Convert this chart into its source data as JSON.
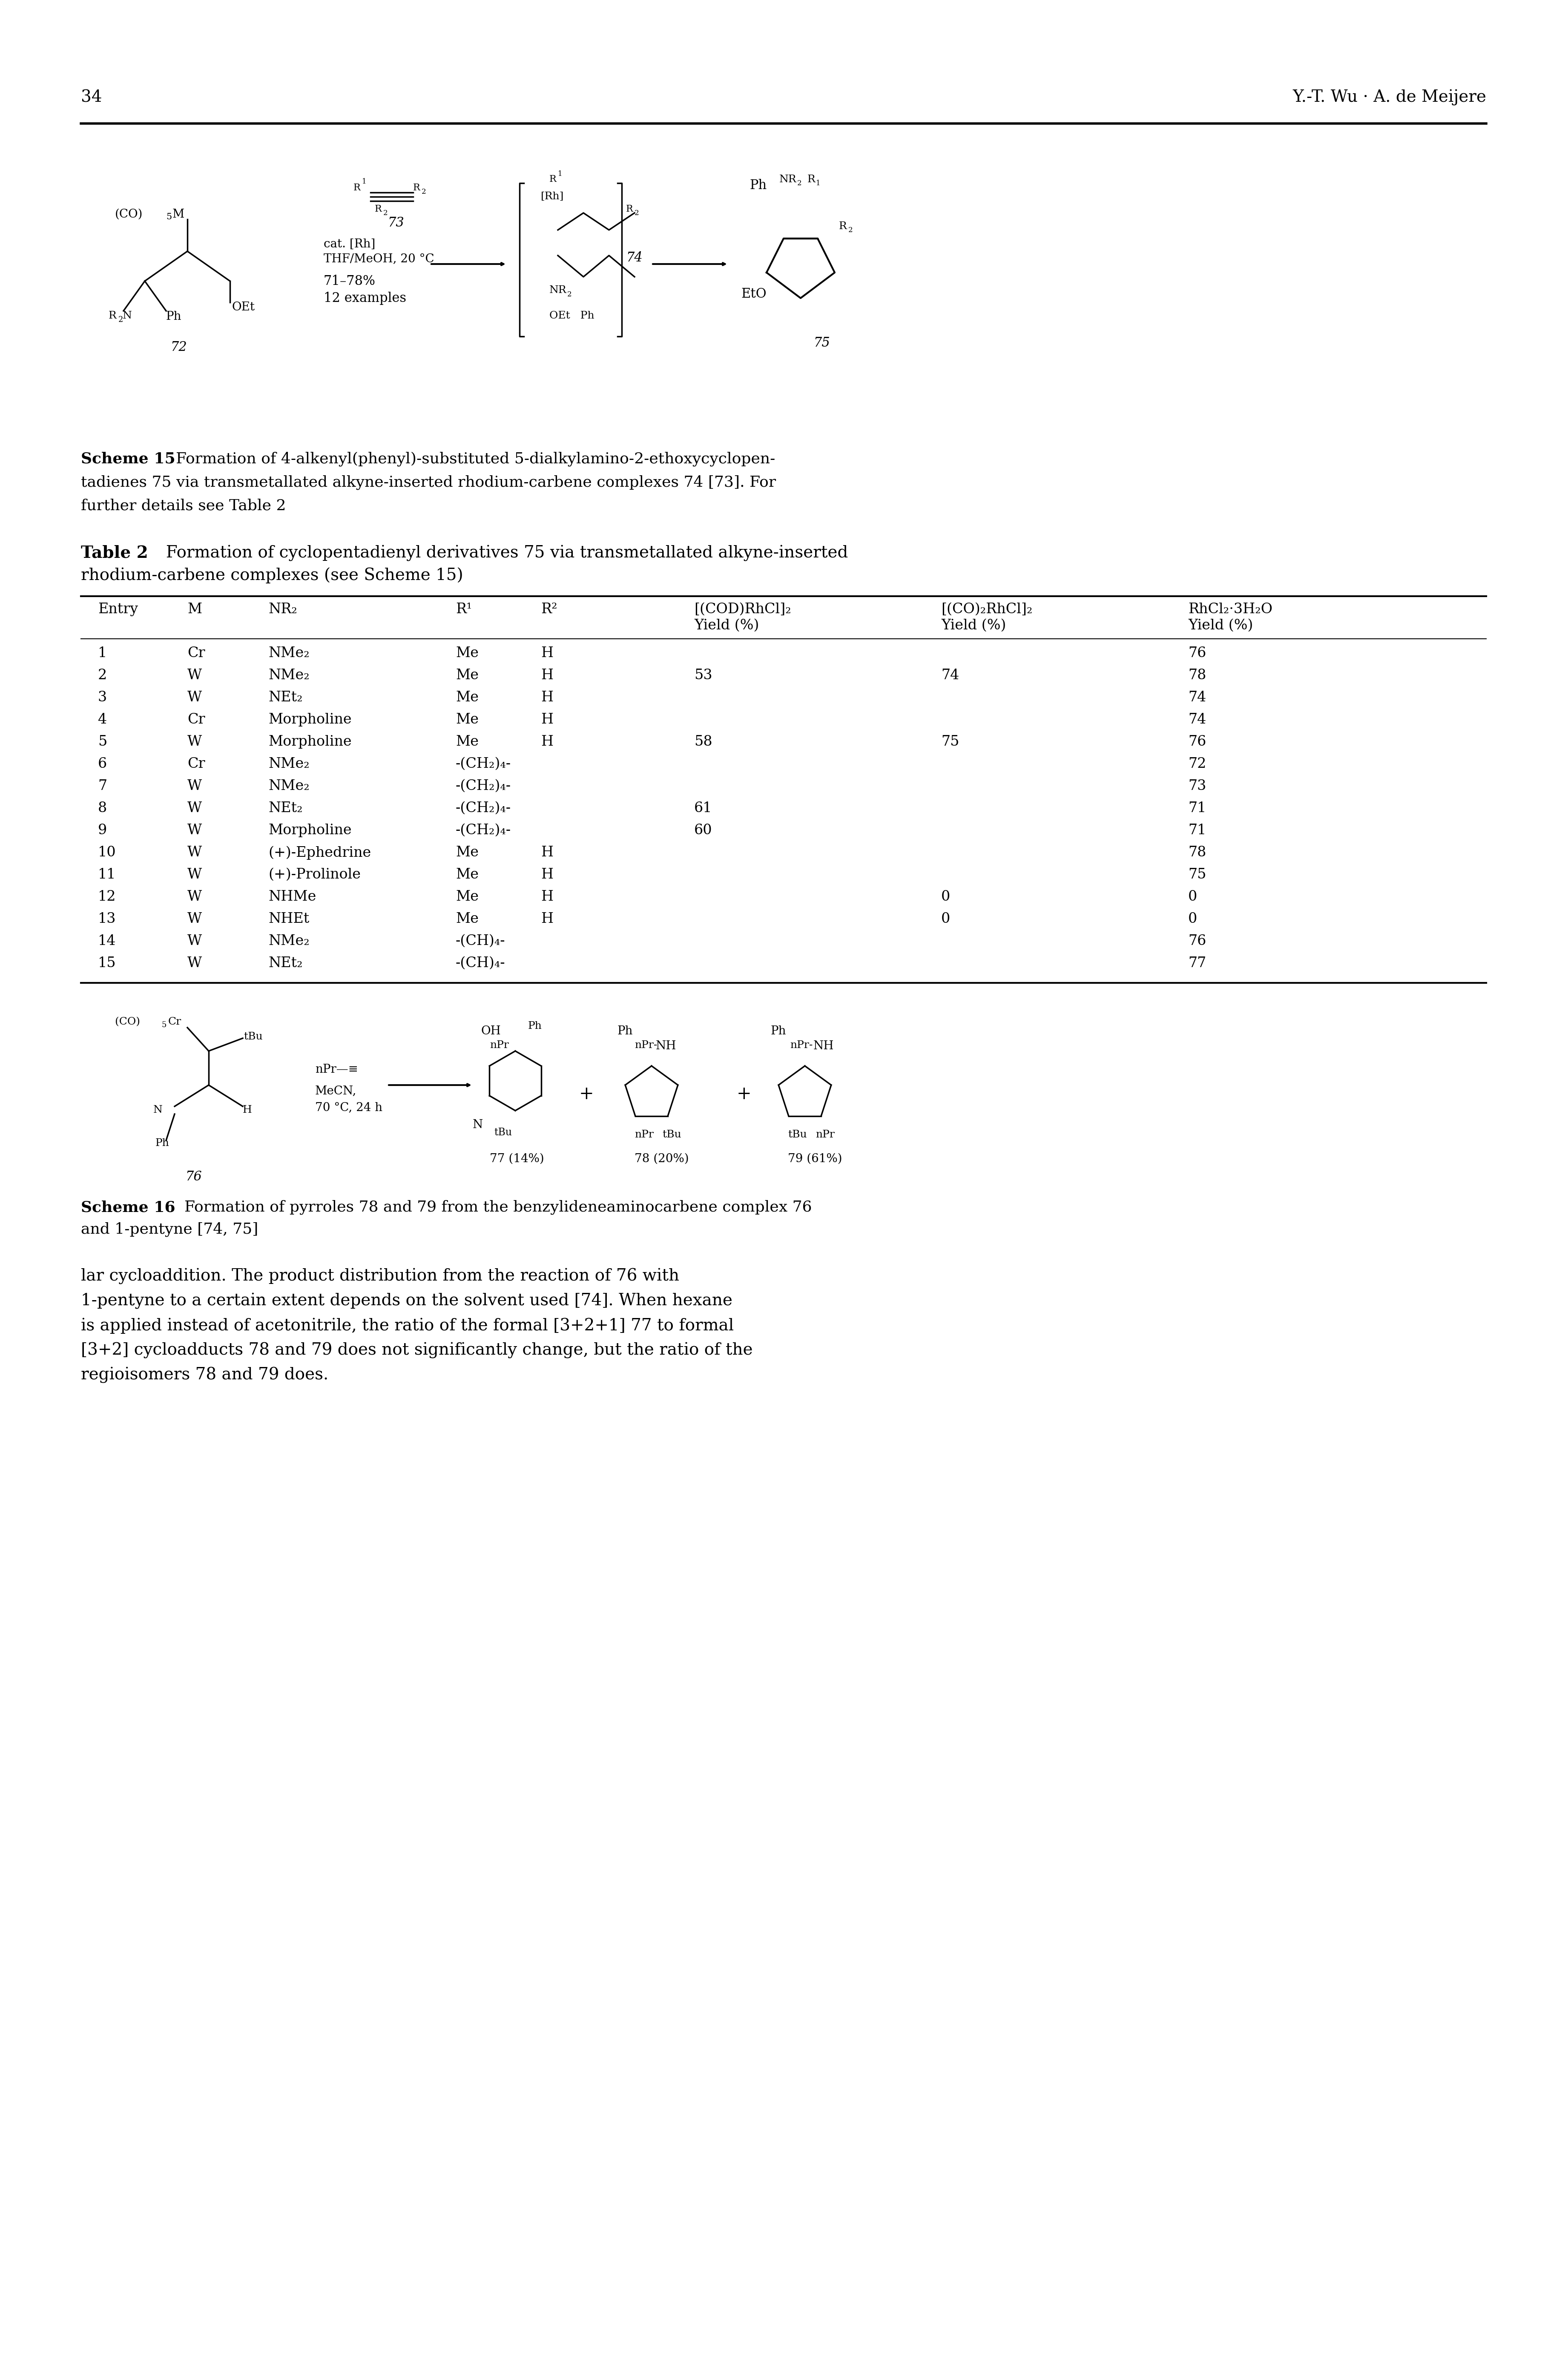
{
  "page_number": "34",
  "header_right": "Y.-T. Wu · A. de Meijere",
  "scheme15_caption_bold": "Scheme 15",
  "scheme15_caption": "  Formation of 4-alkenyl(phenyl)-substituted 5-dialkylamino-2-ethoxycyclopentadienes 75 via transmetallated alkyne-inserted rhodium-carbene complexes 74 [73]. For further details see Table 2",
  "table2_title_bold": "Table 2",
  "table2_title": "  Formation of cyclopentadienyl derivatives 75 via transmetallated alkyne-inserted\nrhodium-carbene complexes (see Scheme 15)",
  "table_headers": [
    "Entry",
    "M",
    "NR₂",
    "R¹",
    "R²",
    "[(COD)RhCl]₂\nYield (%)",
    "[(CO)₂RhCl]₂\nYield (%)",
    "RhCl₂·3H₂O\nYield (%)"
  ],
  "table_data": [
    [
      "1",
      "Cr",
      "NMe₂",
      "Me",
      "H",
      "",
      "",
      "76"
    ],
    [
      "2",
      "W",
      "NMe₂",
      "Me",
      "H",
      "53",
      "74",
      "78"
    ],
    [
      "3",
      "W",
      "NEt₂",
      "Me",
      "H",
      "",
      "",
      "74"
    ],
    [
      "4",
      "Cr",
      "Morpholine",
      "Me",
      "H",
      "",
      "",
      "74"
    ],
    [
      "5",
      "W",
      "Morpholine",
      "Me",
      "H",
      "58",
      "75",
      "76"
    ],
    [
      "6",
      "Cr",
      "NMe₂",
      "-(CH₂)₄-",
      "",
      "",
      "",
      "72"
    ],
    [
      "7",
      "W",
      "NMe₂",
      "-(CH₂)₄-",
      "",
      "",
      "",
      "73"
    ],
    [
      "8",
      "W",
      "NEt₂",
      "-(CH₂)₄-",
      "",
      "61",
      "",
      "71"
    ],
    [
      "9",
      "W",
      "Morpholine",
      "-(CH₂)₄-",
      "",
      "60",
      "",
      "71"
    ],
    [
      "10",
      "W",
      "(+)-Ephedrine",
      "Me",
      "H",
      "",
      "",
      "78"
    ],
    [
      "11",
      "W",
      "(+)-Prolinole",
      "Me",
      "H",
      "",
      "",
      "75"
    ],
    [
      "12",
      "W",
      "NHMe",
      "Me",
      "H",
      "",
      "0",
      "0"
    ],
    [
      "13",
      "W",
      "NHEt",
      "Me",
      "H",
      "",
      "0",
      "0"
    ],
    [
      "14",
      "W",
      "NMe₂",
      "-(CH)₄-",
      "",
      "",
      "",
      "76"
    ],
    [
      "15",
      "W",
      "NEt₂",
      "-(CH)₄-",
      "",
      "",
      "",
      "77"
    ]
  ],
  "scheme16_caption_bold": "Scheme 16",
  "scheme16_caption": "  Formation of pyrroles 78 and 79 from the benzylideneaminocarbene complex 76 and 1-pentyne [74, 75]",
  "body_text": "lar cycloaddition. The product distribution from the reaction of 76 with\n1-pentyne to a certain extent depends on the solvent used [74]. When hexane\nis applied instead of acetonitrile, the ratio of the formal [3+2+1] 77 to formal\n[3+2] cycloadducts 78 and 79 does not significantly change, but the ratio of the\nregioisomers 78 and 79 does.",
  "bg_color": "#ffffff",
  "text_color": "#000000",
  "font_size_body": 28,
  "font_size_header": 26,
  "font_size_caption": 26,
  "font_size_table": 24,
  "font_size_title": 28
}
